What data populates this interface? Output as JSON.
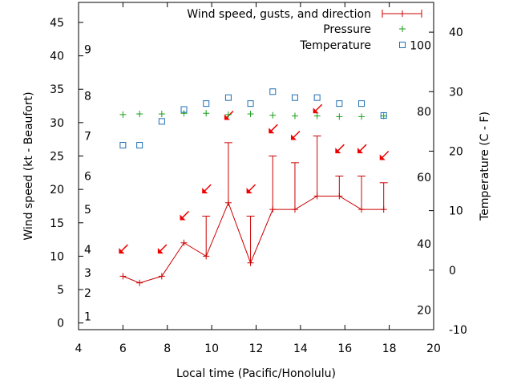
{
  "chart_data": {
    "type": "line",
    "xlabel": "Local time (Pacific/Honolulu)",
    "ylabel": "Wind speed (kt - Beaufort)",
    "y2label": "Temperature (C - F)",
    "xlim": [
      4,
      20
    ],
    "ylim": [
      -1,
      48
    ],
    "y2lim_celsius": [
      -10,
      45
    ],
    "x_ticks": [
      4,
      6,
      8,
      10,
      12,
      14,
      16,
      18,
      20
    ],
    "y_ticks": [
      0,
      5,
      10,
      15,
      20,
      25,
      30,
      35,
      40,
      45
    ],
    "y2_ticks_celsius": [
      -10,
      0,
      10,
      20,
      30,
      40
    ],
    "beaufort_labels": [
      {
        "label": "1",
        "kt": 1
      },
      {
        "label": "2",
        "kt": 4.5
      },
      {
        "label": "3",
        "kt": 7.5
      },
      {
        "label": "4",
        "kt": 11
      },
      {
        "label": "5",
        "kt": 17
      },
      {
        "label": "6",
        "kt": 22
      },
      {
        "label": "7",
        "kt": 28
      },
      {
        "label": "8",
        "kt": 34
      },
      {
        "label": "9",
        "kt": 41
      }
    ],
    "fahrenheit_labels": [
      {
        "label": "20",
        "c": -6.7
      },
      {
        "label": "40",
        "c": 4.4
      },
      {
        "label": "60",
        "c": 15.6
      },
      {
        "label": "80",
        "c": 26.7
      },
      {
        "label": "100",
        "c": 37.8
      }
    ],
    "legend": {
      "wind": "Wind speed, gusts, and direction",
      "pressure": "Pressure",
      "temperature": "Temperature"
    },
    "colors": {
      "wind": "#cc0000",
      "pressure": "#1a9e1a",
      "temperature": "#1f6fb4",
      "arrow": "#ee0000"
    },
    "wind": [
      {
        "x": 6.0,
        "speed": 7,
        "gust": 7
      },
      {
        "x": 6.75,
        "speed": 6,
        "gust": 6
      },
      {
        "x": 7.75,
        "speed": 7,
        "gust": 7
      },
      {
        "x": 8.75,
        "speed": 12,
        "gust": 12
      },
      {
        "x": 9.75,
        "speed": 10,
        "gust": 16
      },
      {
        "x": 10.75,
        "speed": 18,
        "gust": 27
      },
      {
        "x": 11.75,
        "speed": 9,
        "gust": 16
      },
      {
        "x": 12.75,
        "speed": 17,
        "gust": 25
      },
      {
        "x": 13.75,
        "speed": 17,
        "gust": 24
      },
      {
        "x": 14.75,
        "speed": 19,
        "gust": 28
      },
      {
        "x": 15.75,
        "speed": 19,
        "gust": 22
      },
      {
        "x": 16.75,
        "speed": 17,
        "gust": 22
      },
      {
        "x": 17.75,
        "speed": 17,
        "gust": 21
      }
    ],
    "wind_arrows": [
      {
        "x": 6.0,
        "y": 11
      },
      {
        "x": 7.75,
        "y": 11
      },
      {
        "x": 8.75,
        "y": 16
      },
      {
        "x": 9.75,
        "y": 20
      },
      {
        "x": 10.75,
        "y": 31
      },
      {
        "x": 11.75,
        "y": 20
      },
      {
        "x": 12.75,
        "y": 29
      },
      {
        "x": 13.75,
        "y": 28
      },
      {
        "x": 14.75,
        "y": 32
      },
      {
        "x": 15.75,
        "y": 26
      },
      {
        "x": 16.75,
        "y": 26
      },
      {
        "x": 17.75,
        "y": 25
      }
    ],
    "pressure_points": [
      {
        "x": 6.0,
        "y": 31.2
      },
      {
        "x": 6.75,
        "y": 31.3
      },
      {
        "x": 7.75,
        "y": 31.3
      },
      {
        "x": 8.75,
        "y": 31.4
      },
      {
        "x": 9.75,
        "y": 31.4
      },
      {
        "x": 10.75,
        "y": 31.2
      },
      {
        "x": 11.75,
        "y": 31.3
      },
      {
        "x": 12.75,
        "y": 31.1
      },
      {
        "x": 13.75,
        "y": 31.0
      },
      {
        "x": 14.75,
        "y": 31.0
      },
      {
        "x": 15.75,
        "y": 30.9
      },
      {
        "x": 16.75,
        "y": 30.9
      },
      {
        "x": 17.75,
        "y": 31.0
      }
    ],
    "temperature_celsius": [
      {
        "x": 6.0,
        "c": 21
      },
      {
        "x": 6.75,
        "c": 21
      },
      {
        "x": 7.75,
        "c": 25
      },
      {
        "x": 8.75,
        "c": 27
      },
      {
        "x": 9.75,
        "c": 28
      },
      {
        "x": 10.75,
        "c": 29
      },
      {
        "x": 11.75,
        "c": 28
      },
      {
        "x": 12.75,
        "c": 30
      },
      {
        "x": 13.75,
        "c": 29
      },
      {
        "x": 14.75,
        "c": 29
      },
      {
        "x": 15.75,
        "c": 28
      },
      {
        "x": 16.75,
        "c": 28
      },
      {
        "x": 17.75,
        "c": 26
      }
    ]
  }
}
